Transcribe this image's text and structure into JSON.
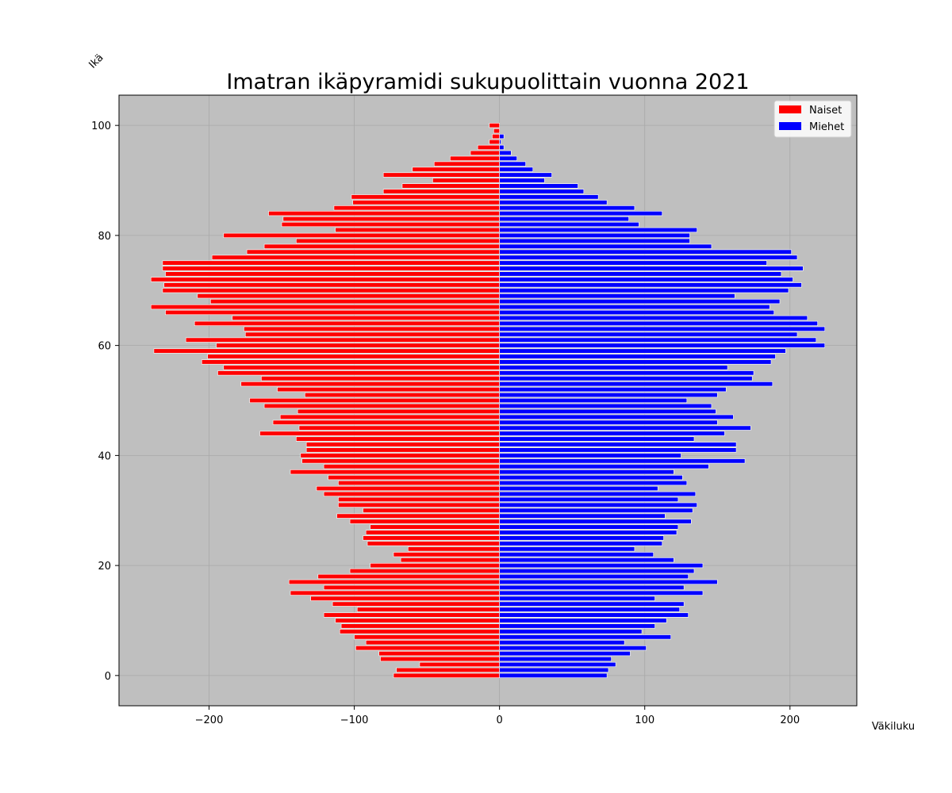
{
  "chart_data": {
    "type": "bar",
    "orientation": "horizontal",
    "title": "Imatran ikäpyramidi sukupuolittain vuonna 2021",
    "xlabel": "Väkiluku",
    "ylabel": "Ikä",
    "xlim": [
      -262,
      246
    ],
    "ylim": [
      -5.5,
      105.5
    ],
    "xticks": [
      -200,
      -100,
      0,
      100,
      200
    ],
    "xtick_labels": [
      "−200",
      "−100",
      "0",
      "100",
      "200"
    ],
    "yticks": [
      0,
      20,
      40,
      60,
      80,
      100
    ],
    "yaxis_label_values": [
      "0",
      "20",
      "40",
      "60",
      "80",
      "100"
    ],
    "grid": true,
    "legend_position": "upper right",
    "ages": [
      0,
      1,
      2,
      3,
      4,
      5,
      6,
      7,
      8,
      9,
      10,
      11,
      12,
      13,
      14,
      15,
      16,
      17,
      18,
      19,
      20,
      21,
      22,
      23,
      24,
      25,
      26,
      27,
      28,
      29,
      30,
      31,
      32,
      33,
      34,
      35,
      36,
      37,
      38,
      39,
      40,
      41,
      42,
      43,
      44,
      45,
      46,
      47,
      48,
      49,
      50,
      51,
      52,
      53,
      54,
      55,
      56,
      57,
      58,
      59,
      60,
      61,
      62,
      63,
      64,
      65,
      66,
      67,
      68,
      69,
      70,
      71,
      72,
      73,
      74,
      75,
      76,
      77,
      78,
      79,
      80,
      81,
      82,
      83,
      84,
      85,
      86,
      87,
      88,
      89,
      90,
      91,
      92,
      93,
      94,
      95,
      96,
      97,
      98,
      99,
      100
    ],
    "series": [
      {
        "name": "Naiset",
        "color": "#ff0000",
        "values": [
          -73,
          -71,
          -55,
          -82,
          -83,
          -99,
          -92,
          -100,
          -110,
          -109,
          -113,
          -121,
          -98,
          -115,
          -130,
          -144,
          -121,
          -145,
          -125,
          -103,
          -89,
          -68,
          -73,
          -63,
          -91,
          -94,
          -92,
          -89,
          -103,
          -112,
          -94,
          -111,
          -111,
          -121,
          -126,
          -111,
          -118,
          -144,
          -121,
          -136,
          -137,
          -133,
          -133,
          -140,
          -165,
          -138,
          -156,
          -151,
          -139,
          -162,
          -172,
          -134,
          -153,
          -178,
          -164,
          -194,
          -190,
          -205,
          -201,
          -238,
          -195,
          -216,
          -175,
          -176,
          -210,
          -184,
          -230,
          -240,
          -199,
          -208,
          -232,
          -231,
          -240,
          -230,
          -232,
          -232,
          -198,
          -174,
          -162,
          -140,
          -190,
          -113,
          -150,
          -149,
          -159,
          -114,
          -101,
          -102,
          -80,
          -67,
          -46,
          -80,
          -60,
          -45,
          -34,
          -20,
          -15,
          -7,
          -5,
          -4,
          -7
        ],
        "labels": [
          "−73",
          "−71",
          "−55",
          "−82",
          "−83",
          "−99",
          "−92",
          "−100",
          "−110",
          "−109",
          "−113",
          "−121",
          "−98",
          "−115",
          "−130",
          "−144",
          "−121",
          "−145",
          "−125",
          "−103",
          "−89",
          "−68",
          "−73",
          "−63",
          "−91",
          "−94",
          "−92",
          "−89",
          "−103",
          "−112",
          "−94",
          "−111",
          "−111",
          "−121",
          "−126",
          "−111",
          "−118",
          "−144",
          "−121",
          "−136",
          "−137",
          "−133",
          "−133",
          "−140",
          "−165",
          "−138",
          "−156",
          "−151",
          "−139",
          "−162",
          "−172",
          "−134",
          "−153",
          "−178",
          "−164",
          "−194",
          "−190",
          "−205",
          "−201",
          "−238",
          "−195",
          "−216",
          "−175",
          "−176",
          "−210",
          "−184",
          "−230",
          "−240",
          "−199",
          "−208",
          "−232",
          "−231",
          "−240",
          "−230",
          "−232",
          "−232",
          "−198",
          "−174",
          "−162",
          "−140",
          "−190",
          "−113",
          "−150",
          "−149",
          "−159",
          "−114",
          "−101",
          "−102",
          "−80",
          "−67",
          "−46",
          "−80",
          "−60",
          "−45",
          "−34",
          "−20",
          "−15",
          "−7",
          "−5",
          "−4",
          "−7"
        ]
      },
      {
        "name": "Miehet",
        "color": "#0000ff",
        "values": [
          74,
          75,
          80,
          77,
          90,
          101,
          86,
          118,
          98,
          107,
          115,
          130,
          124,
          127,
          107,
          140,
          127,
          150,
          130,
          134,
          140,
          120,
          106,
          93,
          112,
          113,
          122,
          123,
          132,
          114,
          133,
          136,
          123,
          135,
          109,
          129,
          126,
          120,
          144,
          169,
          125,
          163,
          163,
          134,
          155,
          173,
          150,
          161,
          149,
          146,
          129,
          150,
          156,
          188,
          174,
          175,
          157,
          187,
          190,
          197,
          224,
          218,
          205,
          224,
          219,
          212,
          189,
          186,
          193,
          162,
          199,
          208,
          202,
          194,
          209,
          184,
          205,
          201,
          146,
          131,
          131,
          136,
          96,
          89,
          112,
          93,
          74,
          68,
          58,
          54,
          31,
          36,
          23,
          18,
          12,
          8,
          3,
          1,
          3,
          0,
          0
        ],
        "labels": [
          "74",
          "75",
          "80",
          "77",
          "90",
          "101",
          "86",
          "118",
          "98",
          "107",
          "115",
          "130",
          "124",
          "127",
          "107",
          "140",
          "127",
          "150",
          "130",
          "134",
          "140",
          "120",
          "106",
          "93",
          "112",
          "113",
          "122",
          "123",
          "132",
          "114",
          "133",
          "136",
          "123",
          "135",
          "109",
          "129",
          "126",
          "120",
          "144",
          "169",
          "125",
          "163",
          "163",
          "134",
          "155",
          "173",
          "150",
          "161",
          "149",
          "146",
          "129",
          "150",
          "156",
          "188",
          "174",
          "175",
          "157",
          "187",
          "190",
          "197",
          "224",
          "218",
          "205",
          "224",
          "219",
          "212",
          "189",
          "186",
          "193",
          "162",
          "199",
          "208",
          "202",
          "194",
          "209",
          "184",
          "205",
          "201",
          "146",
          "131",
          "131",
          "136",
          "96",
          "89",
          "112",
          "93",
          "74",
          "68",
          "58",
          "54",
          "31",
          "36",
          "23",
          "18",
          "12",
          "8",
          "3",
          "1",
          "3",
          "0",
          "0"
        ]
      }
    ],
    "colors": {
      "plot_background": "#bfbfbf",
      "grid": "#a8a8a8",
      "bar_edge": "#ffffff"
    }
  }
}
